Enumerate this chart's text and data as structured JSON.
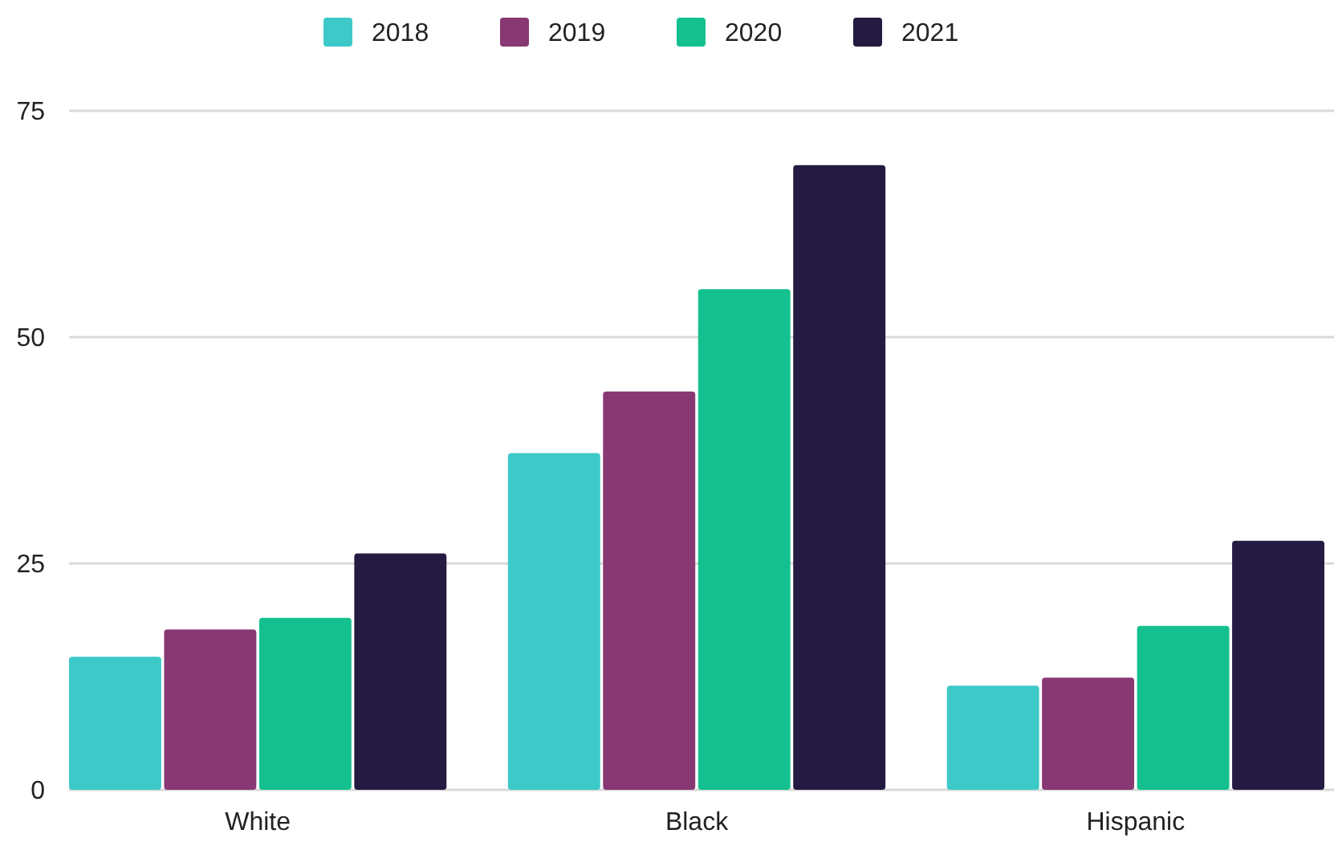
{
  "chart_data": {
    "type": "bar",
    "categories": [
      "White",
      "Black",
      "Hispanic"
    ],
    "series": [
      {
        "name": "2018",
        "color": "#3ec9c9",
        "values": [
          14.7,
          37.2,
          11.5
        ]
      },
      {
        "name": "2019",
        "color": "#883872",
        "values": [
          17.7,
          44.0,
          12.4
        ]
      },
      {
        "name": "2020",
        "color": "#15c08f",
        "values": [
          19.0,
          55.3,
          18.1
        ]
      },
      {
        "name": "2021",
        "color": "#241a42",
        "values": [
          26.1,
          69.0,
          27.5
        ]
      }
    ],
    "ylim": [
      0,
      75
    ],
    "yticks": [
      0,
      25,
      50,
      75
    ],
    "grid": "y",
    "legend": "top"
  }
}
